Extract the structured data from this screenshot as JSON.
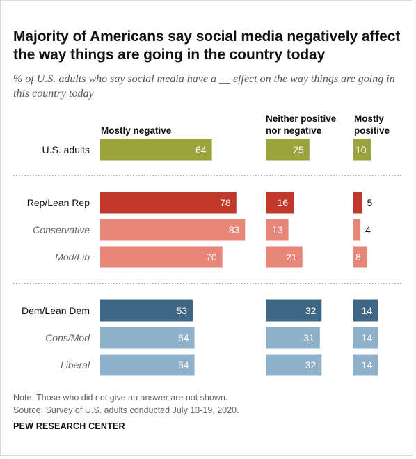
{
  "title": "Majority of Americans say social media negatively affect the way things are going in the country today",
  "subtitle": "% of U.S. adults who say social media have a __ effect on the way things are going in this country today",
  "notes": {
    "note": "Note: Those who did not give an answer are not shown.",
    "source": "Source: Survey of U.S. adults conducted July 13-19, 2020.",
    "org": "PEW RESEARCH CENTER"
  },
  "colors": {
    "total": "#9aa33e",
    "rep": "#c0392b",
    "rep_sub": "#e8867a",
    "dem": "#3f6684",
    "dem_sub": "#8fb0c9"
  },
  "chart_data": {
    "type": "bar",
    "title": "Majority of Americans say social media negatively affect the way things are going in the country today",
    "subtitle": "% of U.S. adults who say social media have a __ effect on the way things are going in this country today",
    "categories": [
      "U.S. adults",
      "Rep/Lean Rep",
      "Conservative",
      "Mod/Lib",
      "Dem/Lean Dem",
      "Cons/Mod",
      "Liberal"
    ],
    "italic_categories": [
      "Conservative",
      "Mod/Lib",
      "Cons/Mod",
      "Liberal"
    ],
    "series": [
      {
        "name": "Mostly negative",
        "values": [
          64,
          78,
          83,
          70,
          53,
          54,
          54
        ]
      },
      {
        "name": "Neither positive nor negative",
        "values": [
          25,
          16,
          13,
          21,
          32,
          31,
          32
        ]
      },
      {
        "name": "Mostly positive",
        "values": [
          10,
          5,
          4,
          8,
          14,
          14,
          14
        ]
      }
    ],
    "column_headers": [
      [
        "Mostly negative"
      ],
      [
        "Neither positive",
        "nor negative"
      ],
      [
        "Mostly",
        "positive"
      ]
    ],
    "row_colors": [
      "total",
      "rep",
      "rep_sub",
      "rep_sub",
      "dem",
      "dem_sub",
      "dem_sub"
    ]
  }
}
